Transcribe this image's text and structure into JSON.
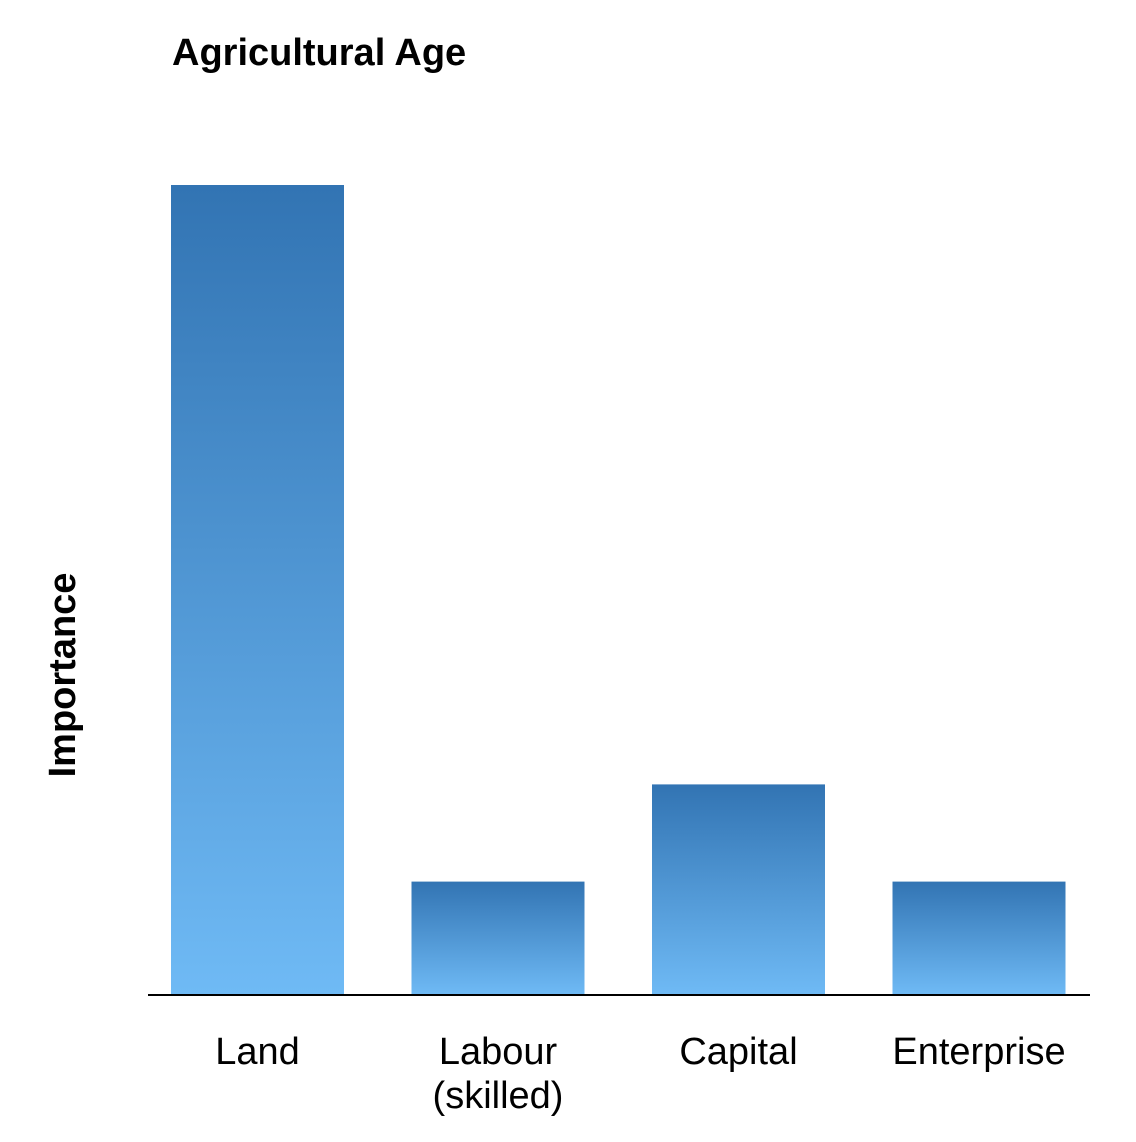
{
  "chart_data": {
    "type": "bar",
    "title": "Agricultural Age",
    "y_label": "Importance",
    "categories": [
      "Land",
      "Labour (skilled)",
      "Capital",
      "Enterprise"
    ],
    "values": [
      100,
      14,
      26,
      14
    ],
    "ylim": [
      0,
      100
    ],
    "gradient": [
      "#3274b3",
      "#6fbaf5"
    ]
  }
}
